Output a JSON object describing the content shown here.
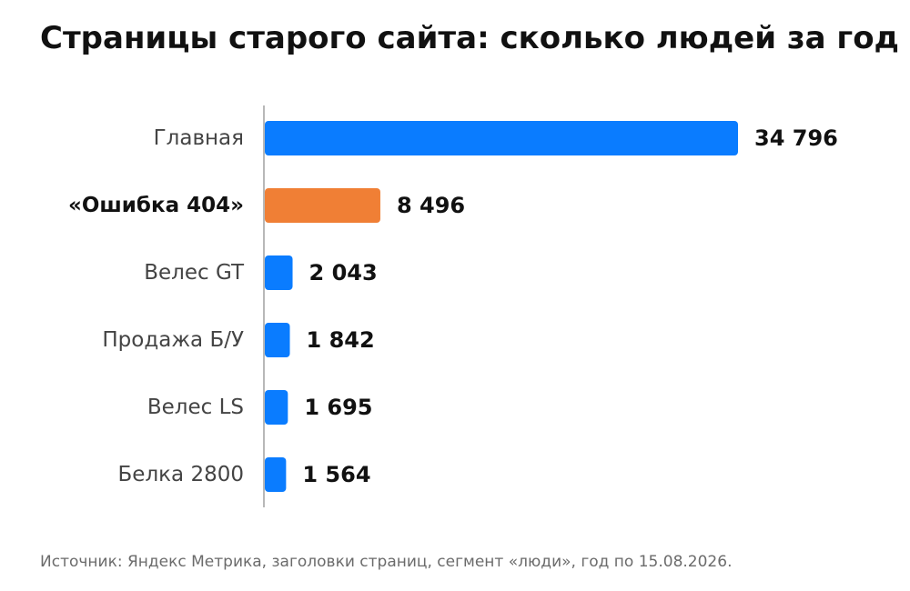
{
  "chart_data": {
    "type": "bar",
    "orientation": "horizontal",
    "title": "Страницы старого сайта: сколько людей за год",
    "categories": [
      "Главная",
      "«Ошибка 404»",
      "Велес GT",
      "Продажа Б/У",
      "Велес LS",
      "Белка 2800"
    ],
    "values": [
      34796,
      8496,
      2043,
      1842,
      1695,
      1564
    ],
    "value_labels": [
      "34 796",
      "8 496",
      "2 043",
      "1 842",
      "1 695",
      "1 564"
    ],
    "highlight_index": 1,
    "xlim": [
      0,
      34796
    ],
    "grid": false,
    "legend": "none",
    "colors": {
      "default_bar": "#0a7cff",
      "highlight_bar": "#f07f35",
      "axis_line": "#b8b8b8",
      "category_text": "#444444",
      "highlight_text": "#111111",
      "value_text": "#111111"
    }
  },
  "source": "Источник: Яндекс Метрика, заголовки страниц, сегмент «люди», год по 15.08.2026."
}
